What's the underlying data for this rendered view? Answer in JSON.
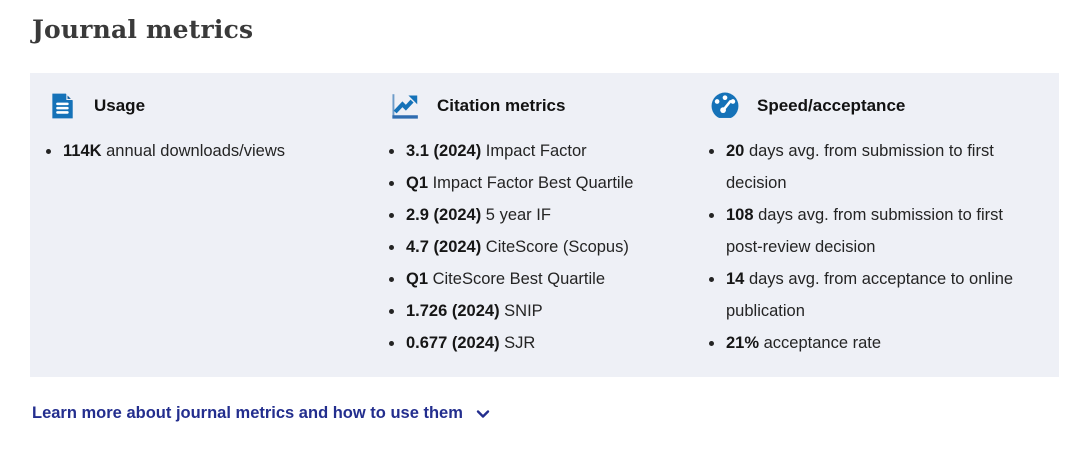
{
  "page": {
    "title": "Journal metrics"
  },
  "panel": {
    "columns": [
      {
        "icon": "document-icon",
        "heading": "Usage",
        "items": [
          {
            "bold": "114K",
            "rest": " annual downloads/views"
          }
        ]
      },
      {
        "icon": "line-chart-icon",
        "heading": "Citation metrics",
        "items": [
          {
            "bold": "3.1 (2024)",
            "rest": " Impact Factor"
          },
          {
            "bold": "Q1",
            "rest": " Impact Factor Best Quartile"
          },
          {
            "bold": "2.9 (2024)",
            "rest": " 5 year IF"
          },
          {
            "bold": "4.7 (2024)",
            "rest": " CiteScore (Scopus)"
          },
          {
            "bold": "Q1",
            "rest": " CiteScore Best Quartile"
          },
          {
            "bold": "1.726 (2024)",
            "rest": " SNIP"
          },
          {
            "bold": "0.677 (2024)",
            "rest": " SJR"
          }
        ]
      },
      {
        "icon": "speedometer-icon",
        "heading": "Speed/acceptance",
        "items": [
          {
            "bold": "20",
            "rest": " days avg. from submission to first decision"
          },
          {
            "bold": "108",
            "rest": " days avg. from submission to first post-review decision"
          },
          {
            "bold": "14",
            "rest": " days avg. from acceptance to online publication"
          },
          {
            "bold": "21%",
            "rest": " acceptance rate"
          }
        ]
      }
    ]
  },
  "footer": {
    "learn_more_label": "Learn more about journal metrics and how to use them",
    "chevron_icon": "chevron-down-icon"
  },
  "colors": {
    "panel_background": "#eef0f6",
    "icon_blue": "#1572b8",
    "icon_blue_dark": "#0b5c9d",
    "link_navy": "#232e8e",
    "title_color": "#3a3a3a",
    "text_color": "#242424"
  }
}
